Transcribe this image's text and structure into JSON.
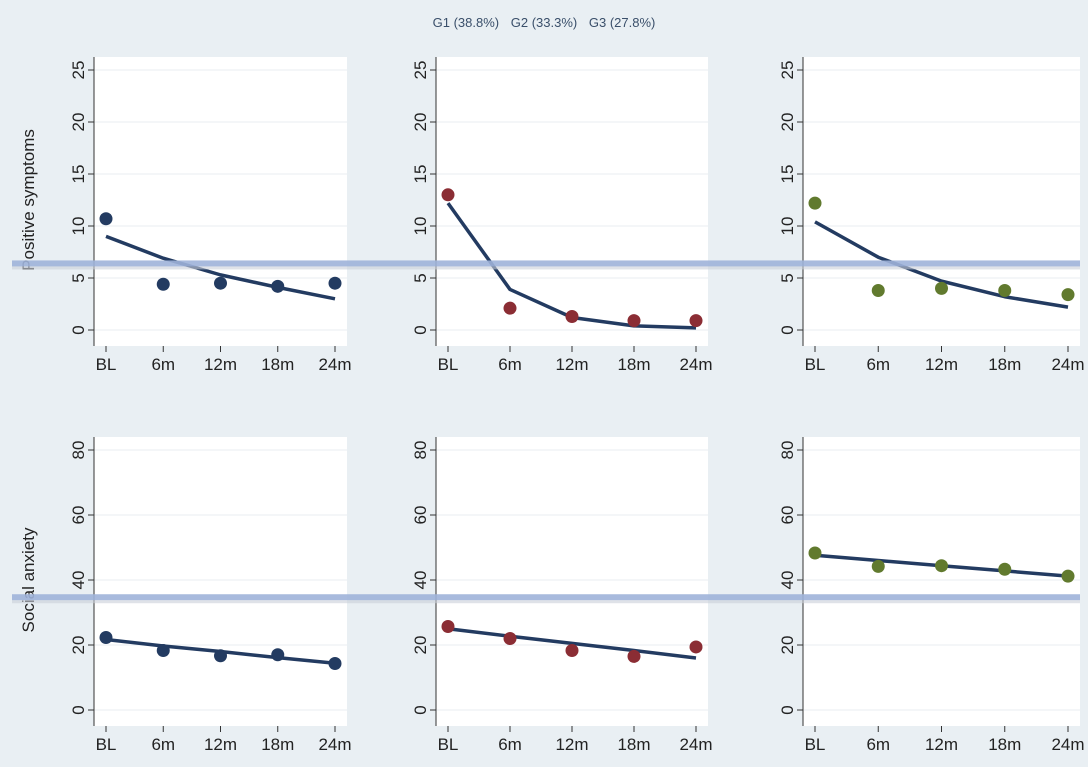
{
  "legend": {
    "g1": "G1 (38.8%)",
    "g2": "G2 (33.3%)",
    "g3": "G3 (27.8%)"
  },
  "colors": {
    "background": "#e9eff3",
    "plot_background": "#ffffff",
    "fit_line": "#233b61",
    "g1": "#233b61",
    "g2": "#8b2d34",
    "g3": "#617a2e",
    "reference_line": "#9fb3d9"
  },
  "chart_data": [
    {
      "type": "scatter",
      "row": "Positive symptoms",
      "group": "G1",
      "ylabel": "Positive symptoms",
      "categories": [
        "BL",
        "6m",
        "12m",
        "18m",
        "24m"
      ],
      "observed": [
        10.7,
        4.4,
        4.5,
        4.2,
        4.5
      ],
      "fitted": [
        9.0,
        6.9,
        5.3,
        4.1,
        3.0
      ],
      "yticks": [
        "0",
        "5",
        "10",
        "15",
        "20",
        "25"
      ],
      "ylim": [
        0,
        25
      ],
      "reference_y": 6.4
    },
    {
      "type": "scatter",
      "row": "Positive symptoms",
      "group": "G2",
      "ylabel": "",
      "categories": [
        "BL",
        "6m",
        "12m",
        "18m",
        "24m"
      ],
      "observed": [
        13.0,
        2.1,
        1.3,
        0.9,
        0.9
      ],
      "fitted": [
        12.2,
        3.9,
        1.2,
        0.4,
        0.2
      ],
      "yticks": [
        "0",
        "5",
        "10",
        "15",
        "20",
        "25"
      ],
      "ylim": [
        0,
        25
      ],
      "reference_y": 6.4
    },
    {
      "type": "scatter",
      "row": "Positive symptoms",
      "group": "G3",
      "ylabel": "",
      "categories": [
        "BL",
        "6m",
        "12m",
        "18m",
        "24m"
      ],
      "observed": [
        12.2,
        3.8,
        4.0,
        3.8,
        3.4
      ],
      "fitted": [
        10.4,
        7.0,
        4.7,
        3.2,
        2.2
      ],
      "yticks": [
        "0",
        "5",
        "10",
        "15",
        "20",
        "25"
      ],
      "ylim": [
        0,
        25
      ],
      "reference_y": 6.4
    },
    {
      "type": "scatter",
      "row": "Social anxiety",
      "group": "G1",
      "ylabel": "Social anxiety",
      "categories": [
        "BL",
        "6m",
        "12m",
        "18m",
        "24m"
      ],
      "observed": [
        22.3,
        18.3,
        16.7,
        17.0,
        14.3
      ],
      "fitted": [
        21.7,
        19.7,
        18.0,
        16.1,
        14.4
      ],
      "yticks": [
        "0",
        "20",
        "40",
        "60",
        "80"
      ],
      "ylim": [
        0,
        80
      ],
      "reference_y": 34.7
    },
    {
      "type": "scatter",
      "row": "Social anxiety",
      "group": "G2",
      "ylabel": "",
      "categories": [
        "BL",
        "6m",
        "12m",
        "18m",
        "24m"
      ],
      "observed": [
        25.7,
        22.0,
        18.3,
        16.5,
        19.4
      ],
      "fitted": [
        25.0,
        22.7,
        20.5,
        18.3,
        16.0
      ],
      "yticks": [
        "0",
        "20",
        "40",
        "60",
        "80"
      ],
      "ylim": [
        0,
        80
      ],
      "reference_y": 34.7
    },
    {
      "type": "scatter",
      "row": "Social anxiety",
      "group": "G3",
      "ylabel": "",
      "categories": [
        "BL",
        "6m",
        "12m",
        "18m",
        "24m"
      ],
      "observed": [
        48.3,
        44.2,
        44.4,
        43.3,
        41.2
      ],
      "fitted": [
        47.6,
        46.0,
        44.4,
        42.8,
        41.2
      ],
      "yticks": [
        "0",
        "20",
        "40",
        "60",
        "80"
      ],
      "ylim": [
        0,
        80
      ],
      "reference_y": 34.7
    }
  ]
}
